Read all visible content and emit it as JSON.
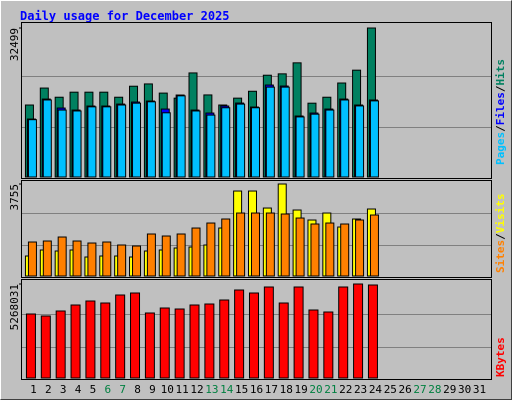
{
  "chart_data": [
    {
      "type": "bar",
      "title": "Daily usage for December 2025",
      "legend_separator": "/",
      "ylim": [
        0,
        32499
      ],
      "yticks": [
        32499
      ],
      "series": [
        {
          "name": "Hits",
          "color": "#008060",
          "values": [
            15700,
            19400,
            17400,
            18500,
            18500,
            18500,
            17400,
            19800,
            20300,
            18300,
            17200,
            22700,
            17900,
            15700,
            17200,
            18700,
            22200,
            22500,
            24900,
            16100,
            17400,
            20500,
            23300,
            32499,
            0,
            0,
            0,
            0,
            0,
            0,
            0
          ]
        },
        {
          "name": "Files",
          "color": "#0000ff",
          "values": [
            12640,
            17000,
            15040,
            14600,
            15480,
            15480,
            15910,
            16350,
            16570,
            14820,
            17880,
            14600,
            13950,
            15480,
            16130,
            15260,
            20060,
            19840,
            13300,
            13950,
            14820,
            17000,
            15700,
            16790,
            0,
            0,
            0,
            0,
            0,
            0,
            0
          ]
        },
        {
          "name": "Pages",
          "color": "#00c0ff",
          "values": [
            12500,
            16800,
            14600,
            14400,
            15300,
            15300,
            15700,
            16100,
            16400,
            14000,
            17700,
            14400,
            13500,
            15100,
            15900,
            15100,
            19600,
            19600,
            13100,
            13700,
            14600,
            16800,
            15500,
            16600,
            0,
            0,
            0,
            0,
            0,
            0,
            0
          ]
        }
      ]
    },
    {
      "type": "bar",
      "legend_separator": "/",
      "ylim": [
        0,
        3755
      ],
      "yticks": [
        3755
      ],
      "series": [
        {
          "name": "Visits",
          "color": "#ffff00",
          "values": [
            816,
            1061,
            1020,
            1061,
            775,
            816,
            816,
            775,
            1020,
            1061,
            1142,
            1183,
            1265,
            1958,
            3468,
            3468,
            2774,
            3755,
            2693,
            2285,
            2570,
            1999,
            2326,
            2734,
            0,
            0,
            0,
            0,
            0,
            0,
            0
          ]
        },
        {
          "name": "Sites",
          "color": "#ff8000",
          "values": [
            1387,
            1428,
            1591,
            1428,
            1346,
            1387,
            1265,
            1224,
            1714,
            1632,
            1714,
            1958,
            2162,
            2326,
            2570,
            2570,
            2570,
            2530,
            2366,
            2122,
            2162,
            2122,
            2285,
            2489,
            0,
            0,
            0,
            0,
            0,
            0,
            0
          ]
        }
      ]
    },
    {
      "type": "bar",
      "ylim": [
        0,
        5268031
      ],
      "yticks": [
        5268031
      ],
      "categories": [
        "1",
        "2",
        "3",
        "4",
        "5",
        "6",
        "7",
        "8",
        "9",
        "10",
        "11",
        "12",
        "13",
        "14",
        "15",
        "16",
        "17",
        "18",
        "19",
        "20",
        "21",
        "22",
        "23",
        "24",
        "25",
        "26",
        "27",
        "28",
        "29",
        "30",
        "31"
      ],
      "category_colors": [
        "#000000",
        "#000000",
        "#000000",
        "#000000",
        "#000000",
        "#008040",
        "#008040",
        "#000000",
        "#000000",
        "#000000",
        "#000000",
        "#000000",
        "#008040",
        "#008040",
        "#000000",
        "#000000",
        "#000000",
        "#000000",
        "#000000",
        "#008040",
        "#008040",
        "#000000",
        "#000000",
        "#000000",
        "#000000",
        "#000000",
        "#008040",
        "#008040",
        "#000000",
        "#000000",
        "#000000"
      ],
      "series": [
        {
          "name": "KBytes",
          "color": "#ff0000",
          "values": [
            3586700,
            3474700,
            3754900,
            4091100,
            4315300,
            4203200,
            4651600,
            4763700,
            3642800,
            3923000,
            3867000,
            4091100,
            4147200,
            4371400,
            4931800,
            4763700,
            5099900,
            4203200,
            5099900,
            3810900,
            3698800,
            5099900,
            5268031,
            5212000,
            0,
            0,
            0,
            0,
            0,
            0,
            0
          ]
        }
      ]
    }
  ]
}
